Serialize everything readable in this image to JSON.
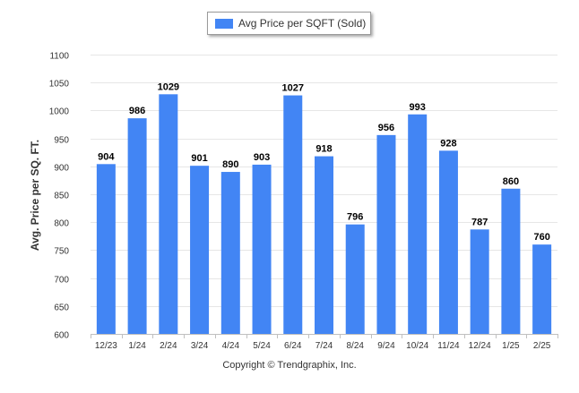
{
  "chart_data": {
    "type": "bar",
    "legend": {
      "label": "Avg Price per SQFT (Sold)",
      "position": "top-center"
    },
    "ylabel": "Avg. Price per SQ. FT.",
    "xlabel": "",
    "ylim": [
      600,
      1100
    ],
    "yticks": [
      600,
      650,
      700,
      750,
      800,
      850,
      900,
      950,
      1000,
      1050,
      1100
    ],
    "grid": true,
    "categories": [
      "12/23",
      "1/24",
      "2/24",
      "3/24",
      "4/24",
      "5/24",
      "6/24",
      "7/24",
      "8/24",
      "9/24",
      "10/24",
      "11/24",
      "12/24",
      "1/25",
      "2/25"
    ],
    "series": [
      {
        "name": "Avg Price per SQFT (Sold)",
        "values": [
          904,
          986,
          1029,
          901,
          890,
          903,
          1027,
          918,
          796,
          956,
          993,
          928,
          787,
          860,
          760
        ],
        "color": "#4285f4"
      }
    ]
  },
  "footer": {
    "copyright": "Copyright © Trendgraphix, Inc."
  }
}
